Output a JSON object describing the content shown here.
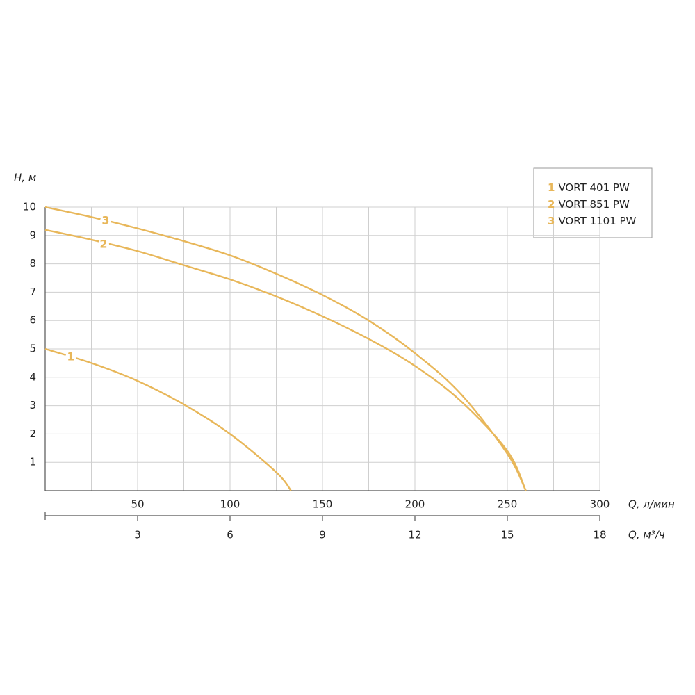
{
  "chart_data": {
    "type": "line",
    "y_label": "H, м",
    "x_label": "Q, л/мин",
    "x2_label": "Q, м³/ч",
    "xlim": [
      0,
      300
    ],
    "xticks": [
      50,
      100,
      150,
      200,
      250,
      300
    ],
    "x_grid": [
      25,
      50,
      75,
      100,
      125,
      150,
      175,
      200,
      225,
      250,
      275,
      300
    ],
    "x2lim": [
      0,
      18
    ],
    "x2ticks": [
      3,
      6,
      9,
      12,
      15,
      18
    ],
    "ylim": [
      0,
      10
    ],
    "yticks": [
      1,
      2,
      3,
      4,
      5,
      6,
      7,
      8,
      9,
      10
    ],
    "grid": true,
    "legend": "top-right",
    "series": [
      {
        "name": "VORT 401 PW",
        "label": "1",
        "color": "#e8b75a",
        "x": [
          0,
          25,
          50,
          75,
          100,
          125,
          133
        ],
        "values": [
          5,
          4.5,
          3.87,
          3.04,
          2.0,
          0.65,
          0
        ]
      },
      {
        "name": "VORT 851 PW",
        "label": "2",
        "color": "#e8b75a",
        "x": [
          0,
          25,
          50,
          75,
          100,
          125,
          150,
          175,
          200,
          225,
          250,
          260
        ],
        "values": [
          9.2,
          8.85,
          8.45,
          7.95,
          7.45,
          6.85,
          6.15,
          5.35,
          4.4,
          3.15,
          1.4,
          0
        ]
      },
      {
        "name": "VORT 1101 PW",
        "label": "3",
        "color": "#e8b75a",
        "x": [
          0,
          25,
          50,
          75,
          100,
          125,
          150,
          175,
          200,
          225,
          250,
          260
        ],
        "values": [
          10,
          9.65,
          9.25,
          8.8,
          8.3,
          7.65,
          6.9,
          6.0,
          4.85,
          3.4,
          1.3,
          0
        ]
      }
    ]
  }
}
